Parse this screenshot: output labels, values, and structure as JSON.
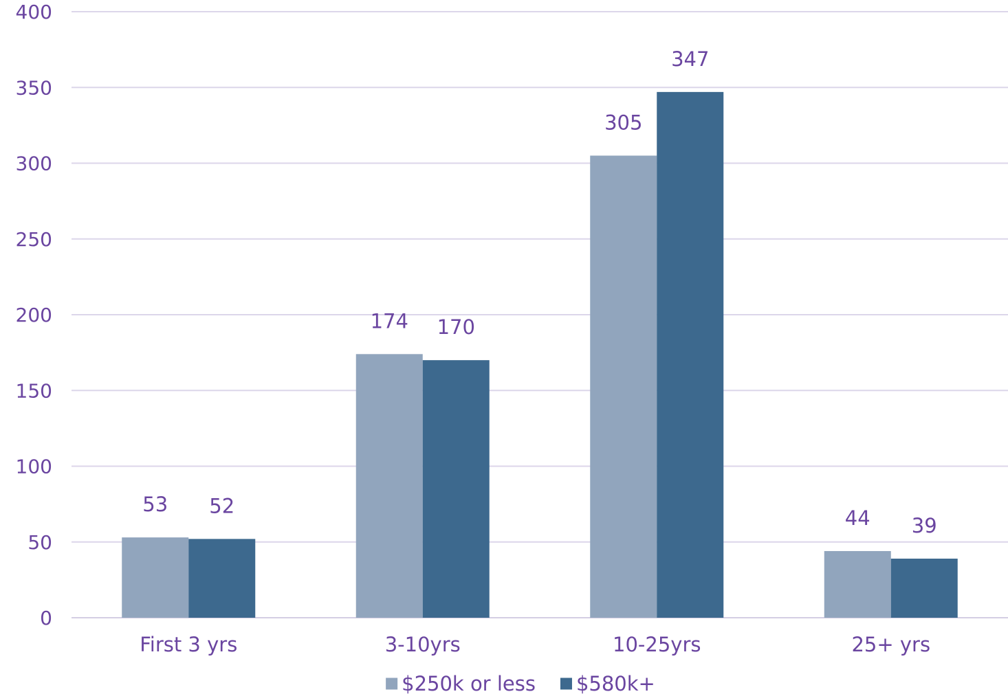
{
  "chart_data": {
    "type": "bar",
    "title": "",
    "xlabel": "",
    "ylabel": "",
    "categories": [
      "First 3 yrs",
      "3-10yrs",
      "10-25yrs",
      "25+ yrs"
    ],
    "series": [
      {
        "name": "$250k or less",
        "values": [
          53,
          174,
          305,
          44
        ],
        "color": "#91a5bd"
      },
      {
        "name": "$580k+",
        "values": [
          52,
          170,
          347,
          39
        ],
        "color": "#3d698e"
      }
    ],
    "ylim": [
      0,
      400
    ],
    "yticks": [
      0,
      50,
      100,
      150,
      200,
      250,
      300,
      350,
      400
    ],
    "grid": true,
    "data_labels": true,
    "legend_position": "bottom",
    "colors": {
      "text": "#6a45a0",
      "grid": "#dcd6ea",
      "axis": "#d4cee3"
    }
  }
}
